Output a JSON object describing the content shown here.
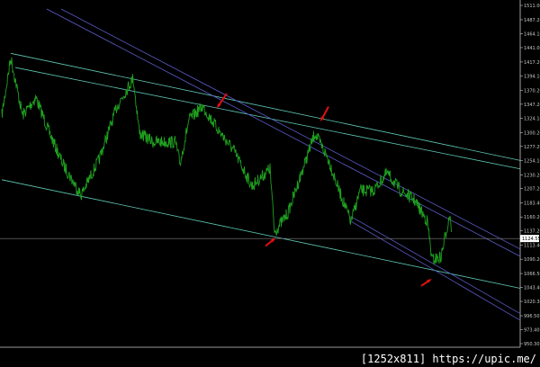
{
  "chart_data": {
    "type": "line",
    "title": "",
    "xlabel": "",
    "ylabel": "",
    "ylim": [
      950.3,
      1511.0
    ],
    "grid": false,
    "colors": {
      "background": "#000000",
      "price": "#1fa01f",
      "channel_teal": "#5fc8b4",
      "channel_blue": "#5a5ac8",
      "current_line": "#808080",
      "arrow": "#e01010",
      "axis": "#c8c8c8"
    },
    "y_ticks": [
      "1511.00",
      "1487.20",
      "1464.10",
      "1441.00",
      "1417.20",
      "1394.10",
      "1370.20",
      "1347.20",
      "1324.10",
      "1300.20",
      "1277.20",
      "1254.10",
      "1230.20",
      "1207.20",
      "1183.40",
      "1160.20",
      "1137.20",
      "1113.40",
      "1090.20",
      "1066.50",
      "1043.40",
      "1020.30",
      "996.50",
      "973.40",
      "950.30"
    ],
    "current_price": "1124.55",
    "series": [
      {
        "points": [
          [
            0,
            1328.7
          ],
          [
            10,
            1424.3
          ],
          [
            23,
            1328.7
          ],
          [
            38,
            1358.1
          ],
          [
            53,
            1299.3
          ],
          [
            68,
            1247.9
          ],
          [
            88,
            1196.4
          ],
          [
            108,
            1255.2
          ],
          [
            128,
            1343.4
          ],
          [
            146,
            1390.5
          ],
          [
            153,
            1299.3
          ],
          [
            168,
            1284.6
          ],
          [
            193,
            1284.6
          ],
          [
            198,
            1247.9
          ],
          [
            208,
            1321.4
          ],
          [
            223,
            1343.4
          ],
          [
            243,
            1299.3
          ],
          [
            258,
            1269.9
          ],
          [
            278,
            1211.1
          ],
          [
            298,
            1240.5
          ],
          [
            303,
            1134.7
          ],
          [
            318,
            1167.0
          ],
          [
            333,
            1233.2
          ],
          [
            348,
            1299.3
          ],
          [
            363,
            1255.2
          ],
          [
            373,
            1211.1
          ],
          [
            388,
            1152.3
          ],
          [
            398,
            1203.8
          ],
          [
            413,
            1203.8
          ],
          [
            428,
            1233.2
          ],
          [
            443,
            1203.8
          ],
          [
            458,
            1189.1
          ],
          [
            473,
            1152.3
          ],
          [
            478,
            1089.1
          ],
          [
            488,
            1093.5
          ],
          [
            498,
            1167.0
          ],
          [
            500,
            1130.3
          ]
        ]
      }
    ],
    "trendlines": [
      {
        "color": "teal",
        "from": [
          10,
          1431.5
        ],
        "to": [
          576,
          1254.0
        ]
      },
      {
        "color": "teal",
        "from": [
          15,
          1408.0
        ],
        "to": [
          576,
          1240.0
        ]
      },
      {
        "color": "teal",
        "from": [
          0,
          1222.0
        ],
        "to": [
          576,
          1042.0
        ]
      },
      {
        "color": "blue",
        "from": [
          50,
          1505.0
        ],
        "to": [
          576,
          1095.0
        ]
      },
      {
        "color": "blue",
        "from": [
          66,
          1505.0
        ],
        "to": [
          576,
          1107.0
        ]
      },
      {
        "color": "blue",
        "from": [
          388,
          1161.0
        ],
        "to": [
          576,
          1000.0
        ]
      },
      {
        "color": "blue",
        "from": [
          388,
          1153.0
        ],
        "to": [
          576,
          989.0
        ]
      }
    ],
    "arrows": [
      {
        "from": [
          250,
          1365.0
        ],
        "to": [
          240,
          1343.0
        ]
      },
      {
        "from": [
          363,
          1343.0
        ],
        "to": [
          355,
          1321.0
        ]
      },
      {
        "from": [
          293,
          1112.0
        ],
        "to": [
          303,
          1124.0
        ]
      },
      {
        "from": [
          466,
          1046.0
        ],
        "to": [
          476,
          1056.0
        ]
      }
    ]
  },
  "watermark": "[1252x811] https://upic.me/"
}
